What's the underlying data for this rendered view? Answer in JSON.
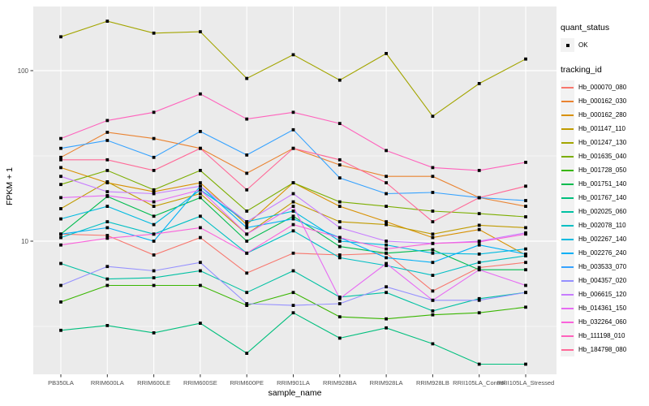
{
  "colors": {
    "background": "#FFFFFF",
    "panel_bg": "#EBEBEB",
    "grid": "#FFFFFF",
    "point": "#000000",
    "tick_text": "#4D4D4D",
    "legend_key_bg": "#F2F2F2"
  },
  "chart_data": {
    "type": "line",
    "title": "",
    "xlabel": "sample_name",
    "ylabel": "FPKM + 1",
    "y_scale": "log10",
    "grid": "on",
    "legend_position": "right",
    "ylim": [
      1.8,
      230
    ],
    "y_ticks": [
      {
        "label": "100",
        "value": 100
      },
      {
        "label": "10",
        "value": 10
      }
    ],
    "y_minor_ticks": [
      31.62,
      3.162
    ],
    "categories": [
      "PB350LA",
      "RRIM600LA",
      "RRIM600LE",
      "RRIM600SE",
      "RRIM600PE",
      "RRIM901LA",
      "RRIM928BA",
      "RRIM928LA",
      "RRIM928LB",
      "RRII105LA_Control",
      "RRII105LA_Stressed"
    ],
    "series": [
      {
        "name": "Hb_000070_080",
        "color": "#F8766D",
        "values": [
          11,
          10.8,
          8.3,
          10.5,
          6.5,
          8.5,
          8.3,
          8.5,
          5.1,
          7,
          7.5
        ]
      },
      {
        "name": "Hb_000162_030",
        "color": "#EA8331",
        "values": [
          31,
          43.5,
          40,
          35,
          25,
          35,
          28,
          24,
          24,
          18,
          16
        ]
      },
      {
        "name": "Hb_000162_280",
        "color": "#D89000",
        "values": [
          27,
          22,
          19.5,
          22,
          12.5,
          22,
          16,
          13,
          10.5,
          11.7,
          8.3
        ]
      },
      {
        "name": "Hb_001147_110",
        "color": "#C09B00",
        "values": [
          15.5,
          22.3,
          16,
          19,
          11,
          17,
          13,
          12.5,
          11,
          12.4,
          12
        ]
      },
      {
        "name": "Hb_001247_130",
        "color": "#A3A500",
        "values": [
          158,
          195,
          166,
          169,
          90,
          124,
          88,
          126,
          54,
          84,
          117
        ]
      },
      {
        "name": "Hb_001635_040",
        "color": "#7CAE00",
        "values": [
          21.5,
          26,
          20,
          26,
          15,
          22,
          17,
          16,
          15,
          14.5,
          13.9
        ]
      },
      {
        "name": "Hb_001728_050",
        "color": "#39B600",
        "values": [
          4.4,
          5.5,
          5.5,
          5.5,
          4.2,
          5,
          3.6,
          3.5,
          3.7,
          3.8,
          4.1
        ]
      },
      {
        "name": "Hb_001751_140",
        "color": "#00BB4E",
        "values": [
          11,
          18.3,
          14,
          18,
          10,
          14,
          9.3,
          8.5,
          8.9,
          6.8,
          6.8
        ]
      },
      {
        "name": "Hb_001767_140",
        "color": "#00BF7D",
        "values": [
          3,
          3.2,
          2.9,
          3.3,
          2.2,
          3.8,
          2.7,
          3.1,
          2.5,
          1.9,
          1.9
        ]
      },
      {
        "name": "Hb_002025_060",
        "color": "#00C1A3",
        "values": [
          7.4,
          6,
          6.1,
          6.7,
          5,
          6.7,
          4.7,
          5,
          3.9,
          4.6,
          5
        ]
      },
      {
        "name": "Hb_002078_110",
        "color": "#00BFC4",
        "values": [
          10.5,
          13,
          11,
          14,
          8.5,
          11.5,
          8,
          7.2,
          6.3,
          7.5,
          8.2
        ]
      },
      {
        "name": "Hb_002267_140",
        "color": "#00BAE0",
        "values": [
          13.5,
          16,
          12.5,
          20,
          13,
          15,
          10,
          9.5,
          8.5,
          8.4,
          9
        ]
      },
      {
        "name": "Hb_002276_240",
        "color": "#00B0F6",
        "values": [
          11,
          12,
          10,
          21,
          12,
          13.5,
          10.5,
          8,
          7.5,
          9.5,
          8.4
        ]
      },
      {
        "name": "Hb_003533_070",
        "color": "#35A2FF",
        "values": [
          35,
          39,
          31,
          44,
          32,
          45,
          23.5,
          19,
          19.3,
          18,
          17.3
        ]
      },
      {
        "name": "Hb_004357_020",
        "color": "#9590FF",
        "values": [
          5.5,
          7.1,
          6.7,
          7.5,
          4.3,
          4.2,
          4.3,
          5.4,
          4.5,
          4.5,
          5
        ]
      },
      {
        "name": "Hb_006615_120",
        "color": "#C77CFF",
        "values": [
          24,
          19.5,
          19,
          21,
          13,
          19,
          12,
          10,
          9.7,
          10,
          11.2
        ]
      },
      {
        "name": "Hb_014361_150",
        "color": "#E76BF3",
        "values": [
          18,
          18.5,
          17,
          20,
          11,
          16,
          4.6,
          7.4,
          4.5,
          6.8,
          5.5
        ]
      },
      {
        "name": "Hb_032264_060",
        "color": "#FA62DB",
        "values": [
          9.5,
          10.4,
          11,
          12,
          8.5,
          12.5,
          10.5,
          9,
          9.7,
          9.9,
          11
        ]
      },
      {
        "name": "Hb_111198_010",
        "color": "#FF62BC",
        "values": [
          40,
          51,
          57,
          73,
          52,
          57,
          49,
          34,
          27,
          26,
          29
        ]
      },
      {
        "name": "Hb_184798_080",
        "color": "#FF6A98",
        "values": [
          30,
          30,
          26,
          35,
          20,
          35,
          30,
          22,
          13,
          18,
          21
        ]
      }
    ],
    "legend_quant": {
      "title": "quant_status",
      "ok_label": "OK",
      "marker": "black-square"
    },
    "legend_tracking": {
      "title": "tracking_id"
    }
  }
}
